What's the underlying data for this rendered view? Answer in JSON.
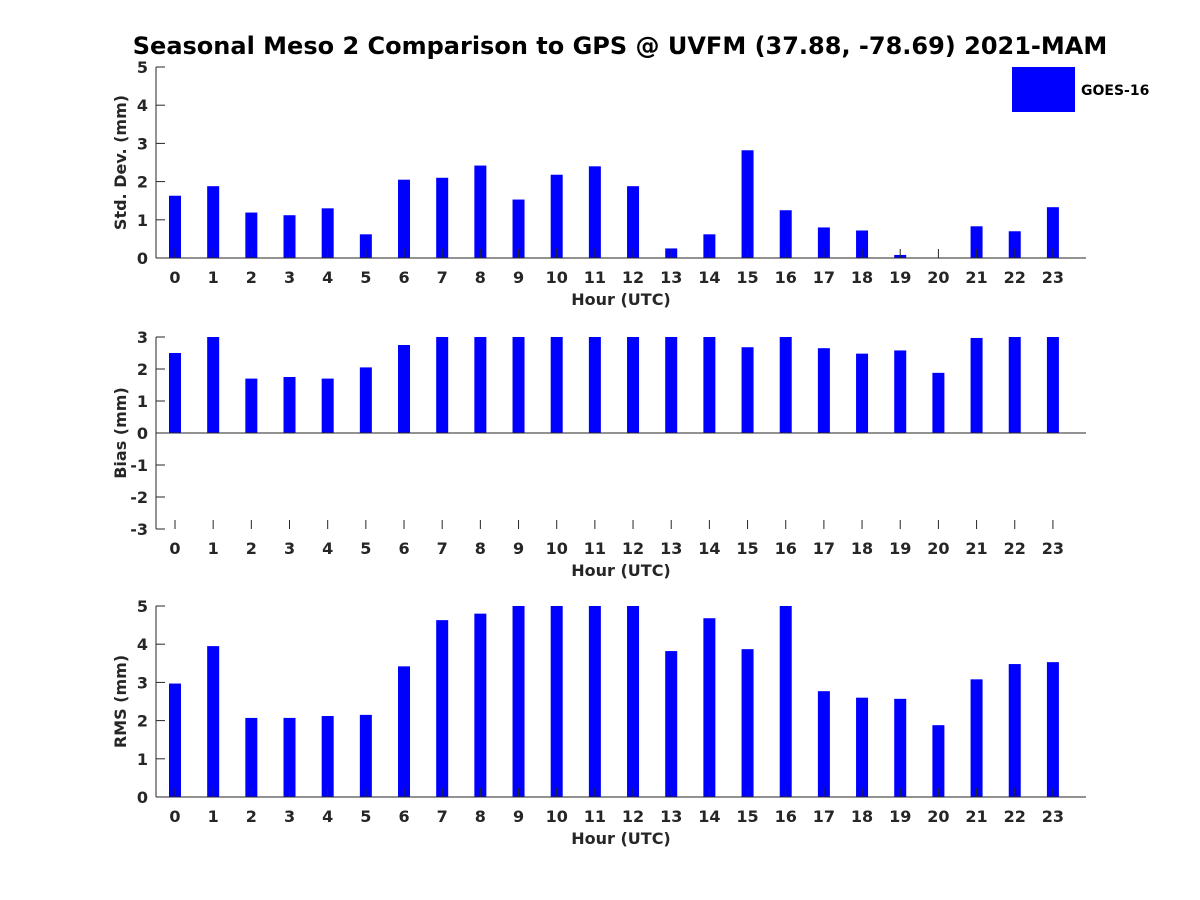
{
  "title": "Seasonal Meso 2 Comparison to GPS @ UVFM (37.88, -78.69) 2021-MAM",
  "colors": {
    "bar": "#0000ff",
    "axis": "#262626",
    "background": "#ffffff"
  },
  "legend": {
    "label": "GOES-16",
    "placement": "top-right"
  },
  "chart_data": [
    {
      "type": "bar",
      "id": "std",
      "series_name": "GOES-16",
      "title": "Seasonal Meso 2 Comparison to GPS @ UVFM (37.88, -78.69) 2021-MAM",
      "xlabel": "Hour (UTC)",
      "ylabel": "Std. Dev. (mm)",
      "ylim": [
        0,
        5
      ],
      "yticks": [
        "0",
        "1",
        "2",
        "3",
        "4",
        "5"
      ],
      "categories": [
        "0",
        "1",
        "2",
        "3",
        "4",
        "5",
        "6",
        "7",
        "8",
        "9",
        "10",
        "11",
        "12",
        "13",
        "14",
        "15",
        "16",
        "17",
        "18",
        "19",
        "20",
        "21",
        "22",
        "23"
      ],
      "values": [
        1.63,
        1.88,
        1.19,
        1.12,
        1.3,
        0.62,
        2.05,
        2.1,
        2.42,
        1.53,
        2.18,
        2.4,
        1.88,
        0.25,
        0.62,
        2.82,
        1.25,
        0.8,
        0.72,
        0.08,
        0.0,
        0.83,
        0.7,
        1.33
      ]
    },
    {
      "type": "bar",
      "id": "bias",
      "series_name": "GOES-16",
      "xlabel": "Hour (UTC)",
      "ylabel": "Bias (mm)",
      "ylim": [
        -3,
        3
      ],
      "yticks": [
        "-3",
        "-2",
        "-1",
        "0",
        "1",
        "2",
        "3"
      ],
      "categories": [
        "0",
        "1",
        "2",
        "3",
        "4",
        "5",
        "6",
        "7",
        "8",
        "9",
        "10",
        "11",
        "12",
        "13",
        "14",
        "15",
        "16",
        "17",
        "18",
        "19",
        "20",
        "21",
        "22",
        "23"
      ],
      "values": [
        2.5,
        3.0,
        1.7,
        1.75,
        1.7,
        2.05,
        2.75,
        3.0,
        3.0,
        3.0,
        3.0,
        3.0,
        3.0,
        3.0,
        3.0,
        2.68,
        3.0,
        2.65,
        2.48,
        2.58,
        1.88,
        2.97,
        3.0,
        3.0
      ]
    },
    {
      "type": "bar",
      "id": "rms",
      "series_name": "GOES-16",
      "xlabel": "Hour (UTC)",
      "ylabel": "RMS (mm)",
      "ylim": [
        0,
        5
      ],
      "yticks": [
        "0",
        "1",
        "2",
        "3",
        "4",
        "5"
      ],
      "categories": [
        "0",
        "1",
        "2",
        "3",
        "4",
        "5",
        "6",
        "7",
        "8",
        "9",
        "10",
        "11",
        "12",
        "13",
        "14",
        "15",
        "16",
        "17",
        "18",
        "19",
        "20",
        "21",
        "22",
        "23"
      ],
      "values": [
        2.97,
        3.95,
        2.07,
        2.07,
        2.12,
        2.15,
        3.42,
        4.63,
        4.8,
        5.0,
        5.0,
        5.0,
        5.0,
        3.82,
        4.68,
        3.87,
        5.0,
        2.77,
        2.6,
        2.57,
        1.88,
        3.08,
        3.48,
        3.53
      ]
    }
  ]
}
